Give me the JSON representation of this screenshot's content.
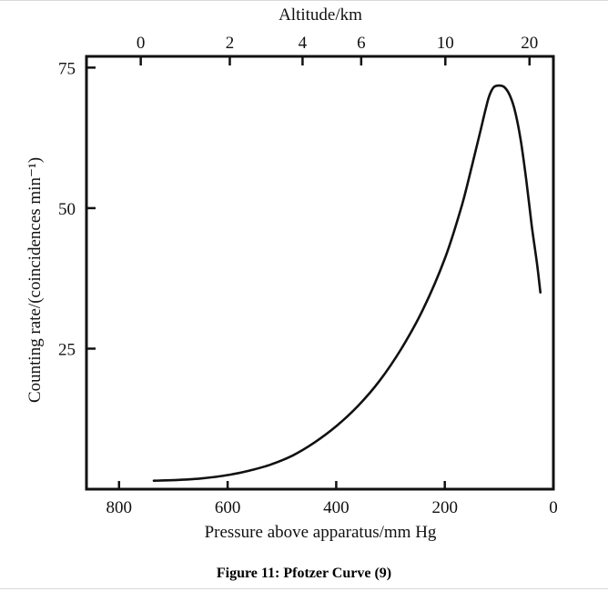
{
  "figure_caption": "Figure 11: Pfotzer Curve (9)",
  "chart_data": {
    "type": "line",
    "title": "",
    "xlabel": "Pressure above apparatus/mm Hg",
    "ylabel": "Counting rate/(coincidences min⁻¹)",
    "top_axis_label": "Altitude/km",
    "xlim": [
      860,
      0
    ],
    "ylim": [
      0,
      77
    ],
    "x_ticks": [
      800,
      600,
      400,
      200,
      0
    ],
    "x_tick_labels": [
      "800",
      "600",
      "400",
      "200",
      "0"
    ],
    "y_ticks": [
      25,
      50,
      75
    ],
    "y_tick_labels": [
      "25",
      "50",
      "75"
    ],
    "top_ticks_pressure": [
      760,
      596,
      462,
      354,
      199,
      44
    ],
    "top_tick_labels": [
      "0",
      "2",
      "4",
      "6",
      "10",
      "20"
    ],
    "grid": false,
    "series": [
      {
        "name": "Pfotzer curve",
        "x": [
          736,
          700,
          650,
          600,
          560,
          520,
          480,
          440,
          400,
          360,
          320,
          280,
          240,
          200,
          170,
          150,
          135,
          125,
          118,
          110,
          100,
          90,
          80,
          70,
          60,
          50,
          40,
          30,
          24
        ],
        "y": [
          1.5,
          1.6,
          1.9,
          2.5,
          3.3,
          4.4,
          6.0,
          8.3,
          11.2,
          14.8,
          19.3,
          25.0,
          32.0,
          41.0,
          50.0,
          57.5,
          63.5,
          67.5,
          70.0,
          71.5,
          71.8,
          71.5,
          70.0,
          67.0,
          62.0,
          55.0,
          47.0,
          40.0,
          35.0
        ]
      }
    ]
  }
}
